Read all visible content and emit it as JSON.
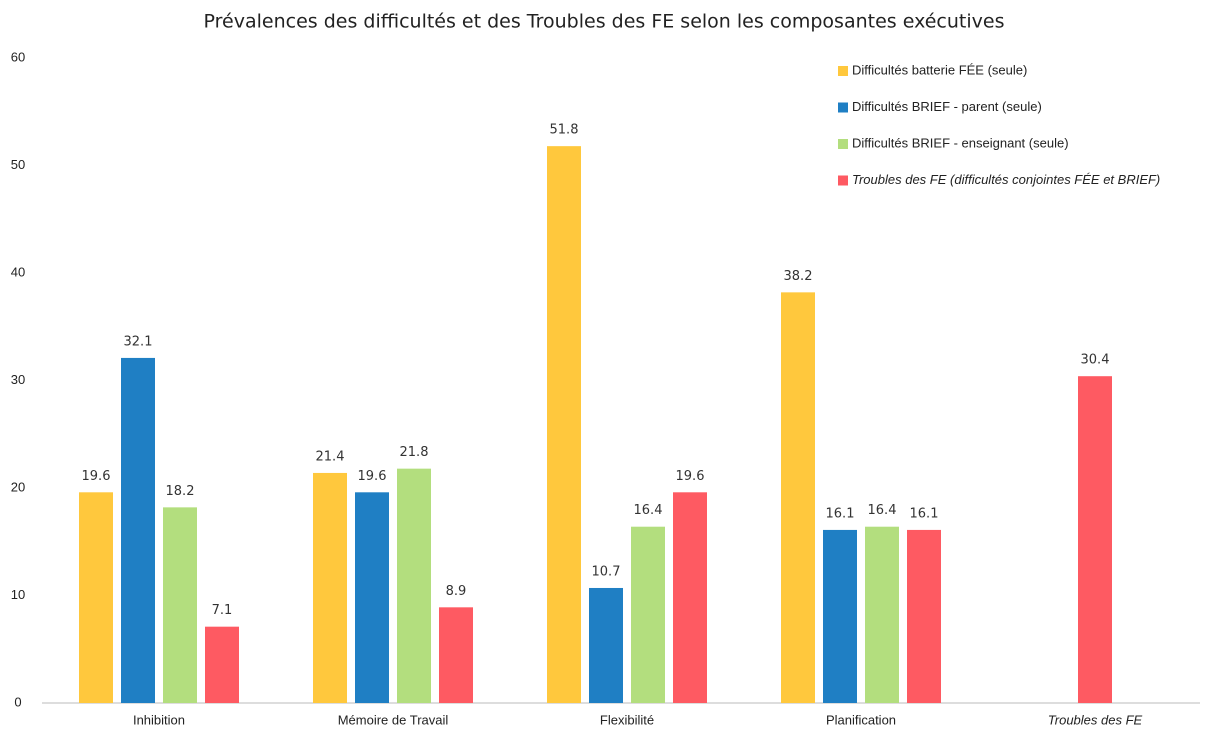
{
  "chart_data": {
    "type": "bar",
    "title": "Prévalences des difficultés et des Troubles des FE selon les composantes exécutives",
    "categories": [
      "Inhibition",
      "Mémoire de Travail",
      "Flexibilité",
      "Planification",
      "Troubles des FE"
    ],
    "series": [
      {
        "name": "Difficultés batterie FÉE (seule)",
        "color": "#ffc83d",
        "values": [
          19.6,
          21.4,
          51.8,
          38.2,
          null
        ]
      },
      {
        "name": "Difficultés BRIEF - parent (seule)",
        "color": "#1f7fc4",
        "values": [
          32.1,
          19.6,
          10.7,
          16.1,
          null
        ]
      },
      {
        "name": "Difficultés BRIEF - enseignant (seule)",
        "color": "#b3de7e",
        "values": [
          18.2,
          21.8,
          16.4,
          16.4,
          null
        ]
      },
      {
        "name": "Troubles des FE (difficultés conjointes FÉE et BRIEF)",
        "color": "#fe5a62",
        "values": [
          7.1,
          8.9,
          19.6,
          16.1,
          30.4
        ],
        "italic": true
      }
    ],
    "ylim": [
      0,
      60
    ],
    "yticks": [
      0,
      10,
      20,
      30,
      40,
      50,
      60
    ],
    "grid": false,
    "legend": "top-right"
  }
}
